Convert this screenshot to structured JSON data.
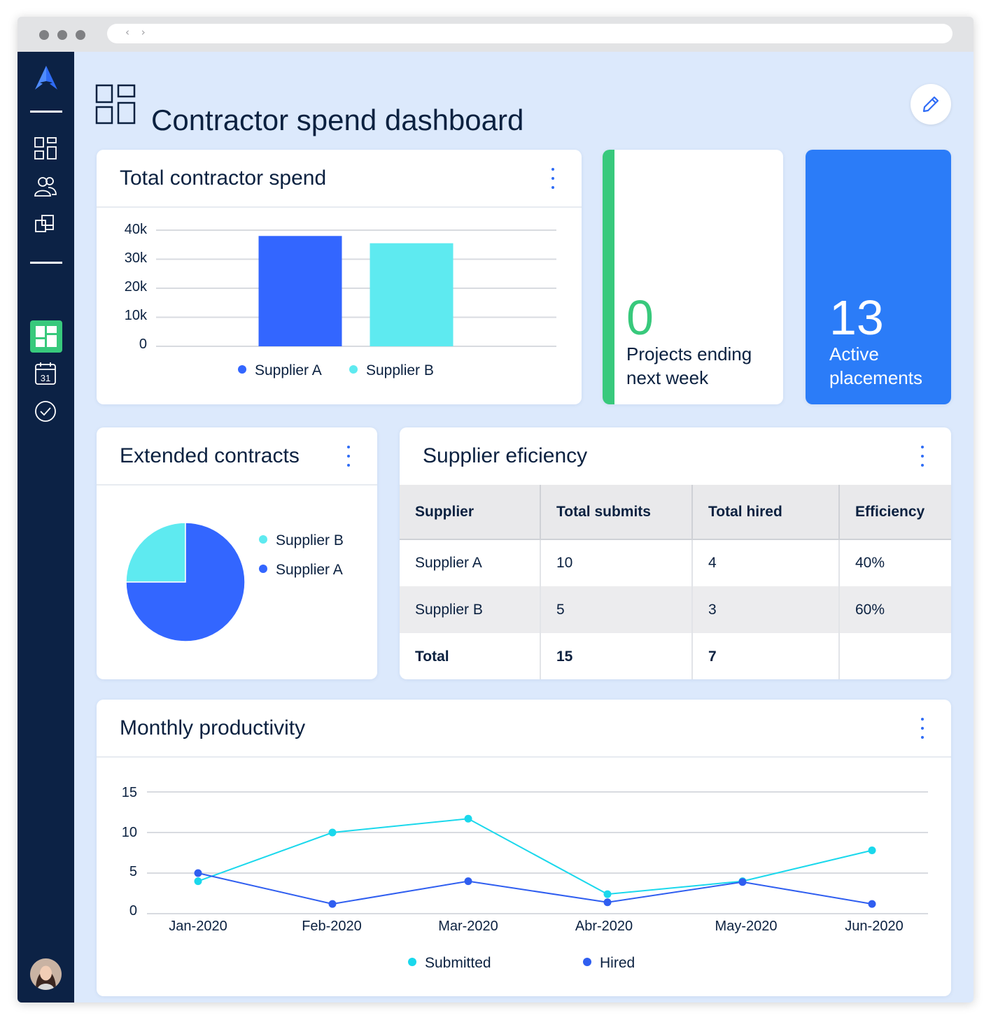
{
  "browser": {
    "nav_arrows": "‹ ›"
  },
  "sidebar": {
    "logo": "brand-logo",
    "items": [
      {
        "name": "dashboard-icon",
        "active": false
      },
      {
        "name": "users-icon",
        "active": false
      },
      {
        "name": "projects-icon",
        "active": false
      },
      {
        "name": "dashboard-grid-icon",
        "active": true
      },
      {
        "name": "calendar-icon",
        "active": false,
        "label": "31"
      },
      {
        "name": "check-circle-icon",
        "active": false
      }
    ],
    "accent": "#38c97c",
    "background": "#0c2245"
  },
  "header": {
    "title": "Contractor spend dashboard",
    "edit_icon": "pencil-icon"
  },
  "spend_card": {
    "title": "Total contractor spend",
    "y_ticks": [
      "40k",
      "30k",
      "20k",
      "10k",
      "0"
    ],
    "legend": [
      "Supplier A",
      "Supplier B"
    ]
  },
  "projects_card": {
    "value": "0",
    "label_line1": "Projects ending",
    "label_line2": "next week",
    "accent": "#38c97c"
  },
  "placements_card": {
    "value": "13",
    "label_line1": "Active",
    "label_line2": "placements",
    "background": "#2b7cf8"
  },
  "extended_card": {
    "title": "Extended contracts",
    "legend": [
      "Supplier B",
      "Supplier A"
    ]
  },
  "efficiency_card": {
    "title": "Supplier eficiency",
    "columns": [
      "Supplier",
      "Total submits",
      "Total hired",
      "Efficiency"
    ],
    "rows": [
      [
        "Supplier A",
        "10",
        "4",
        "40%"
      ],
      [
        "Supplier B",
        "5",
        "3",
        "60%"
      ]
    ],
    "total_row": [
      "Total",
      "15",
      "7",
      ""
    ]
  },
  "productivity_card": {
    "title": "Monthly productivity",
    "y_ticks": [
      "15",
      "10",
      "5",
      "0"
    ],
    "x_labels": [
      "Jan-2020",
      "Feb-2020",
      "Mar-2020",
      "Abr-2020",
      "May-2020",
      "Jun-2020"
    ],
    "legend": [
      "Submitted",
      "Hired"
    ]
  },
  "colors": {
    "supplier_a": "#3366ff",
    "supplier_b": "#5eeaf0",
    "submitted": "#1ad8ec",
    "hired": "#2f5ef0",
    "text": "#0b2140"
  },
  "chart_data": [
    {
      "type": "bar",
      "title": "Total contractor spend",
      "categories": [
        "Supplier A",
        "Supplier B"
      ],
      "values": [
        38000,
        35500
      ],
      "ylim": [
        0,
        40000
      ],
      "grid": true,
      "legend": "bottom"
    },
    {
      "type": "pie",
      "title": "Extended contracts",
      "labels": [
        "Supplier B",
        "Supplier A"
      ],
      "values": [
        25,
        75
      ],
      "legend": "right"
    },
    {
      "type": "line",
      "title": "Monthly productivity",
      "x": [
        "Jan-2020",
        "Feb-2020",
        "Mar-2020",
        "Abr-2020",
        "May-2020",
        "Jun-2020"
      ],
      "series": [
        {
          "name": "Submitted",
          "values": [
            4,
            10,
            11.7,
            2.4,
            4,
            7.8
          ]
        },
        {
          "name": "Hired",
          "values": [
            5,
            1.2,
            4,
            1.4,
            3.9,
            1.2
          ]
        }
      ],
      "ylim": [
        0,
        15
      ],
      "grid": true,
      "legend": "bottom"
    }
  ]
}
